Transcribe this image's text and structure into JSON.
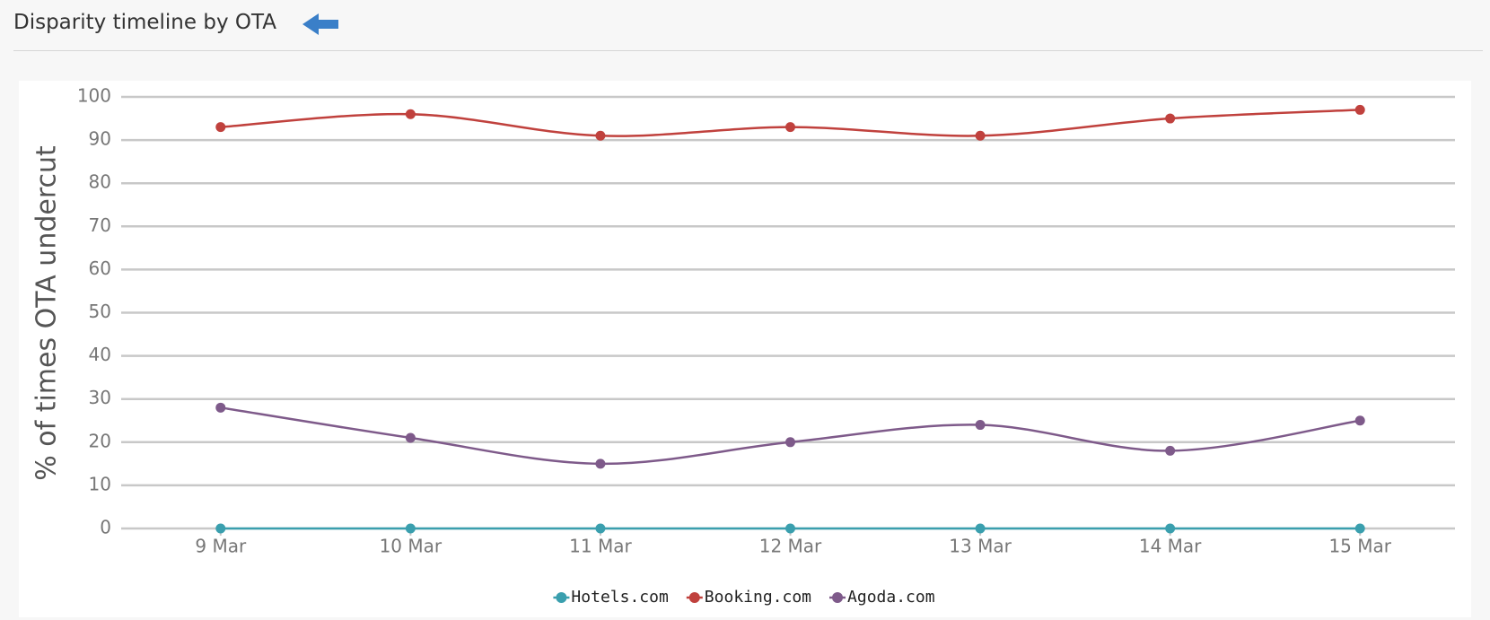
{
  "header": {
    "title": "Disparity timeline by OTA"
  },
  "chart_data": {
    "type": "line",
    "y_label": "% of times OTA undercut",
    "categories": [
      "9 Mar",
      "10 Mar",
      "11 Mar",
      "12 Mar",
      "13 Mar",
      "14 Mar",
      "15 Mar"
    ],
    "series": [
      {
        "name": "Hotels.com",
        "color": "#3a9fae",
        "values": [
          0,
          0,
          0,
          0,
          0,
          0,
          0
        ]
      },
      {
        "name": "Booking.com",
        "color": "#c0413d",
        "values": [
          93,
          96,
          91,
          93,
          91,
          95,
          97
        ]
      },
      {
        "name": "Agoda.com",
        "color": "#7e5a8a",
        "values": [
          28,
          21,
          15,
          20,
          24,
          18,
          25
        ]
      }
    ],
    "ylim": [
      0,
      100
    ],
    "yticks": [
      0,
      10,
      20,
      30,
      40,
      50,
      60,
      70,
      80,
      90,
      100
    ],
    "grid": true,
    "legend": "bottom"
  }
}
